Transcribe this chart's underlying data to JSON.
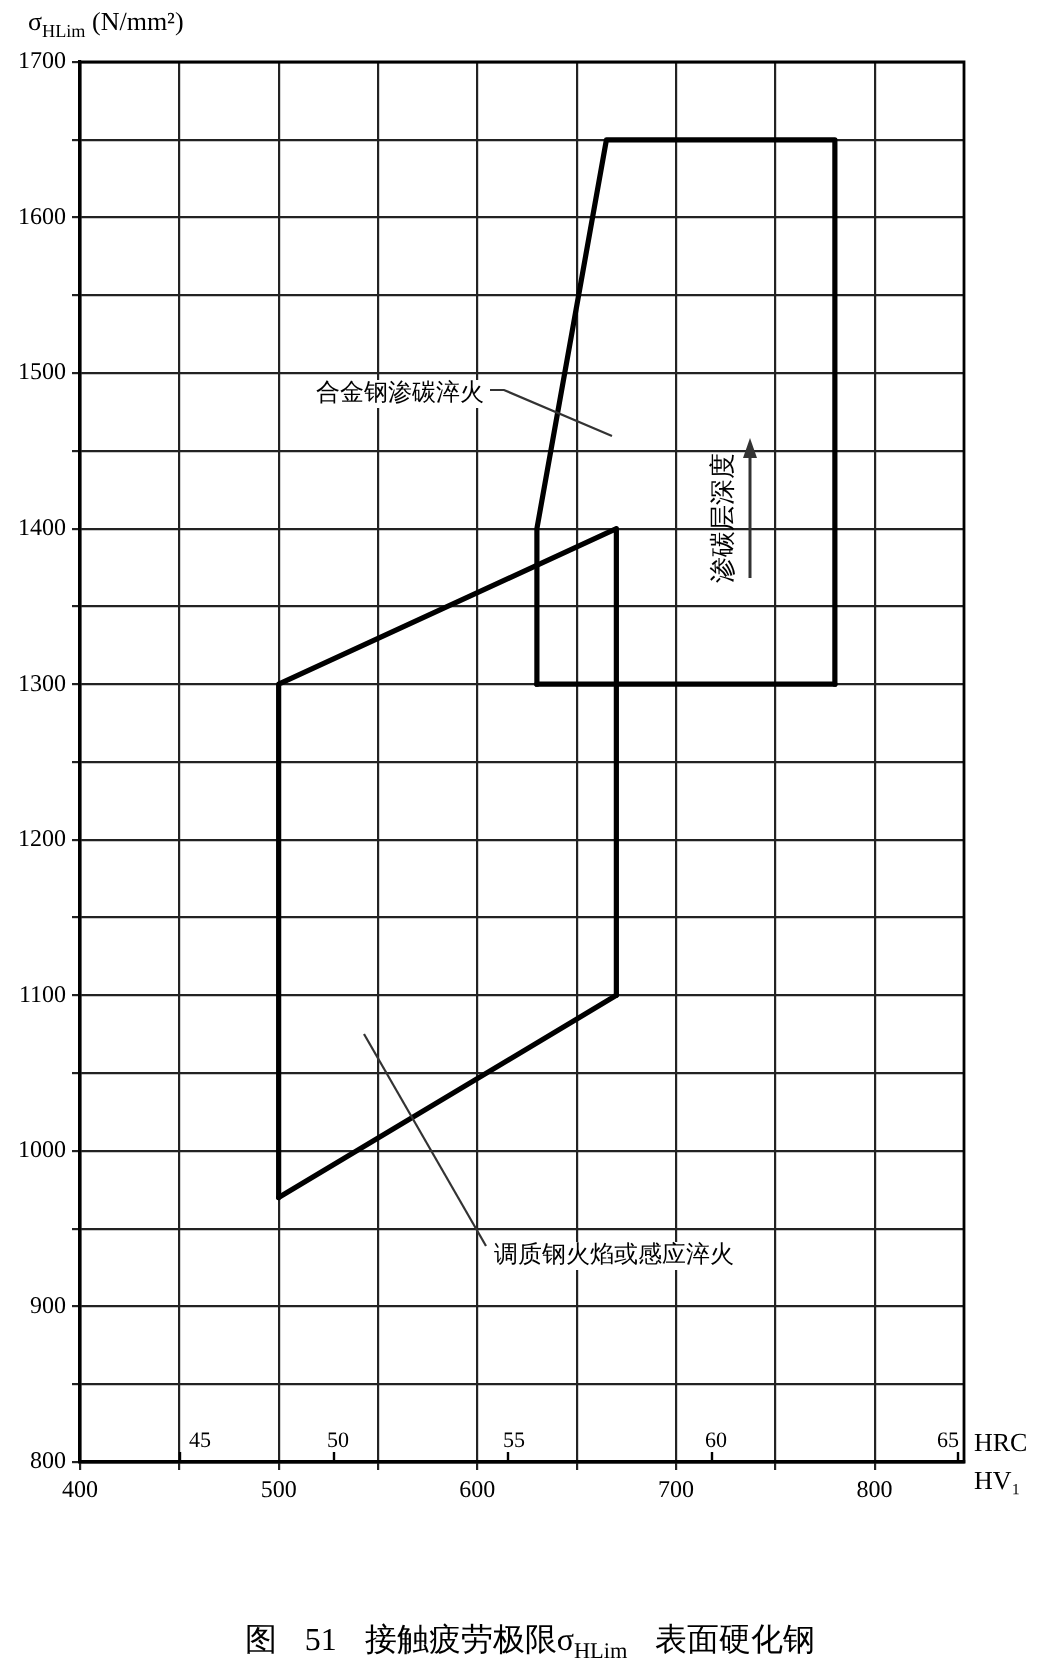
{
  "chart_data": {
    "type": "line",
    "title": "图 51 接触疲劳极限σ$_{HLim}$ 表面硬化钢",
    "ylabel": "σ$_{HLim}$ (N/mm²)",
    "xlabel": "HV₁",
    "series": [
      {
        "color": "#000000",
        "x": [
          630,
          630,
          665,
          780,
          780
        ],
        "values": [
          1300,
          1400,
          1650,
          1650,
          1300
        ]
      },
      {
        "color": "#000000",
        "x": [
          630,
          780
        ],
        "values": [
          1300,
          1300
        ]
      },
      {
        "color": "#000000",
        "x": [
          500,
          500,
          670,
          670
        ],
        "values": [
          970,
          1300,
          1400,
          1100
        ]
      },
      {
        "color": "#000000",
        "x": [
          500,
          670
        ],
        "values": [
          970,
          1100
        ]
      }
    ],
    "xlim": [
      400,
      845
    ],
    "xticks": [
      400,
      {
        "value": 450,
        "label": null
      },
      500,
      {
        "value": 550,
        "label": null
      },
      600,
      {
        "value": 650,
        "label": null
      },
      700,
      {
        "value": 750,
        "label": null
      },
      800
    ],
    "ylim": [
      800,
      1700
    ],
    "yticks": [
      800,
      {
        "value": 850,
        "label": null
      },
      900,
      {
        "value": 950,
        "label": null
      },
      1000,
      {
        "value": 1050,
        "label": null
      },
      1100,
      {
        "value": 1150,
        "label": null
      },
      1200,
      {
        "value": 1250,
        "label": null
      },
      1300,
      {
        "value": 1350,
        "label": null
      },
      1400,
      {
        "value": 1450,
        "label": null
      },
      1500,
      {
        "value": 1550,
        "label": null
      },
      1600,
      {
        "value": 1650,
        "label": null
      },
      1700
    ],
    "grid": true,
    "annotations": [
      "合金钢渗碳淬火",
      "渗碳层深度",
      "调质钢火焰或感应淬火",
      "45",
      "50",
      "55",
      "60",
      "65",
      "HRC"
    ]
  }
}
